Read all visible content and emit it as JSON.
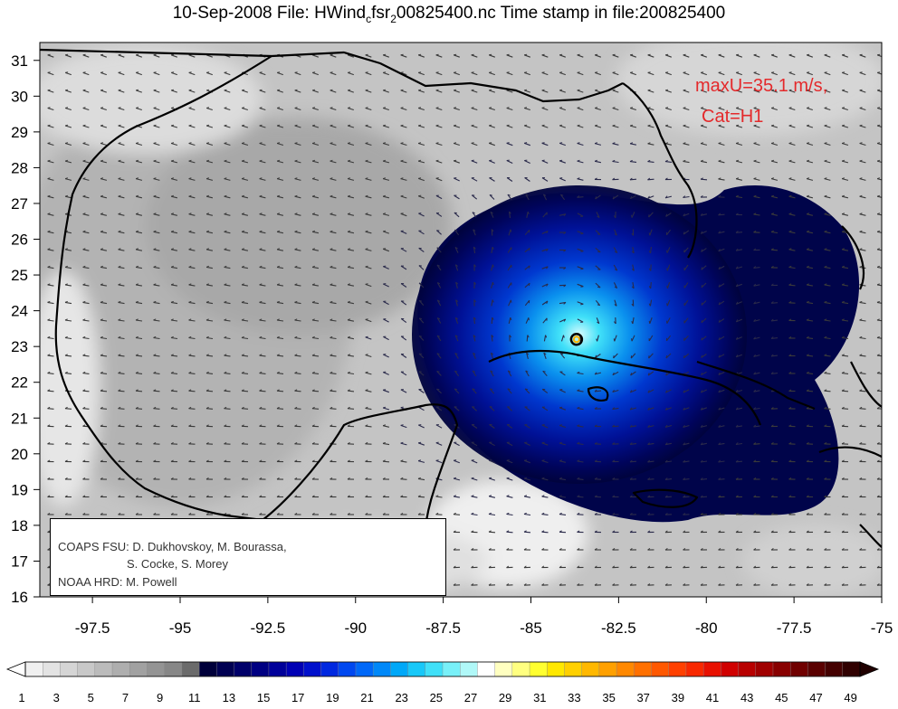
{
  "title": {
    "date": "10-Sep-2008",
    "file_prefix": "File: HWind",
    "sub1": "c",
    "mid": "fsr",
    "sub2": "2",
    "file_suffix": "00825400.nc Time stamp in file:200825400"
  },
  "annotation": {
    "max_wind": "maxU=35.1 m/s,",
    "category": "Cat=H1"
  },
  "credits": {
    "line1": "COAPS FSU: D. Dukhovskoy, M. Bourassa,",
    "line2": "S. Cocke, S. Morey",
    "line3": "NOAA HRD:  M. Powell"
  },
  "map": {
    "type": "wind-speed-contour-map",
    "xlim": [
      -99,
      -75
    ],
    "ylim": [
      16,
      31.5
    ],
    "x_ticks": [
      "-97.5",
      "-95",
      "-92.5",
      "-90",
      "-87.5",
      "-85",
      "-82.5",
      "-80",
      "-77.5",
      "-75"
    ],
    "y_ticks": [
      "16",
      "17",
      "18",
      "19",
      "20",
      "21",
      "22",
      "23",
      "24",
      "25",
      "26",
      "27",
      "28",
      "29",
      "30",
      "31"
    ],
    "storm_center": {
      "lon": -83.7,
      "lat": 23.2
    },
    "colorbar": {
      "labels": [
        "1",
        "3",
        "5",
        "7",
        "9",
        "11",
        "13",
        "15",
        "17",
        "19",
        "21",
        "23",
        "25",
        "27",
        "29",
        "31",
        "33",
        "35",
        "37",
        "39",
        "41",
        "43",
        "45",
        "47",
        "49"
      ],
      "colors": [
        "#f0f0f0",
        "#e3e3e3",
        "#d5d5d5",
        "#c8c8c8",
        "#bbbbbb",
        "#aeaeae",
        "#a1a1a1",
        "#949494",
        "#878787",
        "#6b6b6b",
        "#00003a",
        "#000052",
        "#00006a",
        "#000082",
        "#00009a",
        "#0000b4",
        "#0010cc",
        "#0028e0",
        "#0048f0",
        "#0068f8",
        "#0088f8",
        "#00a8f8",
        "#18c8f8",
        "#40e0f8",
        "#78f0f8",
        "#b0f8f8",
        "#ffffff",
        "#ffffc0",
        "#ffff80",
        "#ffff30",
        "#ffe800",
        "#ffd000",
        "#ffb800",
        "#ffa000",
        "#ff8800",
        "#ff7000",
        "#ff5800",
        "#ff4000",
        "#f82800",
        "#e81000",
        "#d00000",
        "#b80000",
        "#a00000",
        "#880000",
        "#700000",
        "#5a0000",
        "#440000",
        "#300000"
      ]
    }
  }
}
